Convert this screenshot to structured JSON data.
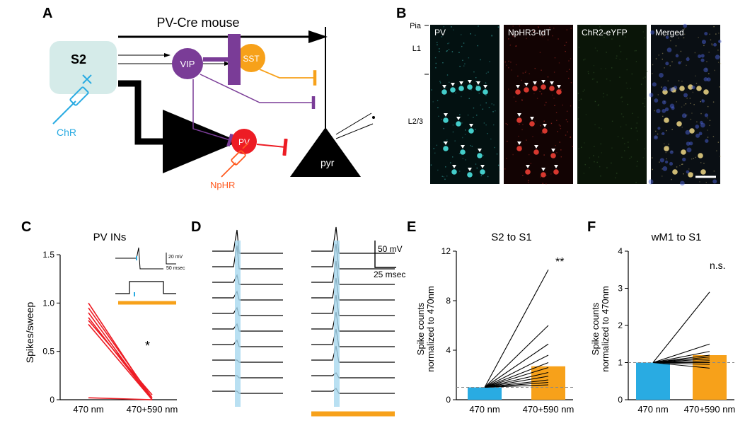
{
  "labels": {
    "A": "A",
    "B": "B",
    "C": "C",
    "D": "D",
    "E": "E",
    "F": "F"
  },
  "panelA": {
    "title": "PV-Cre mouse",
    "s2_box": {
      "label": "S2",
      "fill": "#d5ebe9",
      "text_color": "#000"
    },
    "chr_label": "ChR",
    "chr_color": "#29abe2",
    "vip": {
      "label": "VIP",
      "fill": "#7a3c97",
      "text": "#fff"
    },
    "sst": {
      "label": "SST",
      "fill": "#f7a11a",
      "text": "#fff"
    },
    "pv": {
      "label": "PV",
      "fill": "#ed1c24",
      "text": "#fff"
    },
    "nphr_label": "NpHR",
    "nphr_color": "#ff5a1f",
    "pyr_label": "pyr",
    "pyr_text_color": "#fff",
    "arrow_color": "#000",
    "inhib_color": "#7a3c97"
  },
  "panelB": {
    "left_labels": [
      "Pia",
      "L1",
      "L2/3"
    ],
    "imgs": [
      {
        "title": "PV",
        "bg": "#031111",
        "dots": "#48d8d5"
      },
      {
        "title": "NpHR3-tdT",
        "bg": "#120303",
        "dots": "#e23b32"
      },
      {
        "title": "ChR2-eYFP",
        "bg": "#0a1508",
        "dots": "#3f6a33"
      },
      {
        "title": "Merged",
        "bg": "#0a0f14",
        "dots": "#d8c47a"
      }
    ]
  },
  "panelC": {
    "title": "PV INs",
    "y_label": "Spikes/sweep",
    "y_ticks": [
      "0",
      "0.5",
      "1.0",
      "1.5"
    ],
    "x_ticks": [
      "470 nm",
      "470+590 nm"
    ],
    "line_color": "#ed1c24",
    "lines": [
      [
        1.0,
        0.0
      ],
      [
        0.95,
        0.02
      ],
      [
        0.9,
        0.0
      ],
      [
        0.85,
        0.0
      ],
      [
        0.82,
        0.05
      ],
      [
        0.78,
        0.0
      ],
      [
        0.02,
        0.0
      ]
    ],
    "sig": "*",
    "inset": {
      "scale_v": "20 mV",
      "scale_t": "50 msec",
      "bar_color": "#f7a11a",
      "tick_color": "#29abe2"
    }
  },
  "panelD": {
    "scale_v": "50 mV",
    "scale_t": "25 msec",
    "blue": "#a7d8ef",
    "orange": "#f7a11a",
    "trace_color": "#000",
    "n_traces": 10
  },
  "panelE": {
    "title": "S2 to S1",
    "y_label": "Spike counts\nnormalized to 470nm",
    "y_ticks": [
      "0",
      "4",
      "8",
      "12"
    ],
    "x_ticks": [
      "470 nm",
      "470+590 nm"
    ],
    "bar1": {
      "color": "#29abe2",
      "h": 1.0
    },
    "bar2": {
      "color": "#f7a11a",
      "h": 2.7
    },
    "lines": [
      [
        1,
        1.2
      ],
      [
        1,
        1.4
      ],
      [
        1,
        1.6
      ],
      [
        1,
        1.9
      ],
      [
        1,
        2.2
      ],
      [
        1,
        2.6
      ],
      [
        1,
        3.0
      ],
      [
        1,
        3.6
      ],
      [
        1,
        4.5
      ],
      [
        1,
        6.0
      ],
      [
        1,
        10.5
      ]
    ],
    "sig": "**",
    "dash_y": 1.0
  },
  "panelF": {
    "title": "wM1 to S1",
    "y_label": "Spike counts\nnormalized to 470nm",
    "y_ticks": [
      "0",
      "1",
      "2",
      "3",
      "4"
    ],
    "x_ticks": [
      "470 nm",
      "470+590 nm"
    ],
    "bar1": {
      "color": "#29abe2",
      "h": 1.0
    },
    "bar2": {
      "color": "#f7a11a",
      "h": 1.2
    },
    "lines": [
      [
        1,
        0.85
      ],
      [
        1,
        0.95
      ],
      [
        1,
        1.0
      ],
      [
        1,
        1.05
      ],
      [
        1,
        1.1
      ],
      [
        1,
        1.15
      ],
      [
        1,
        1.2
      ],
      [
        1,
        1.3
      ],
      [
        1,
        1.5
      ],
      [
        1,
        2.9
      ]
    ],
    "sig": "n.s.",
    "dash_y": 1.0
  }
}
